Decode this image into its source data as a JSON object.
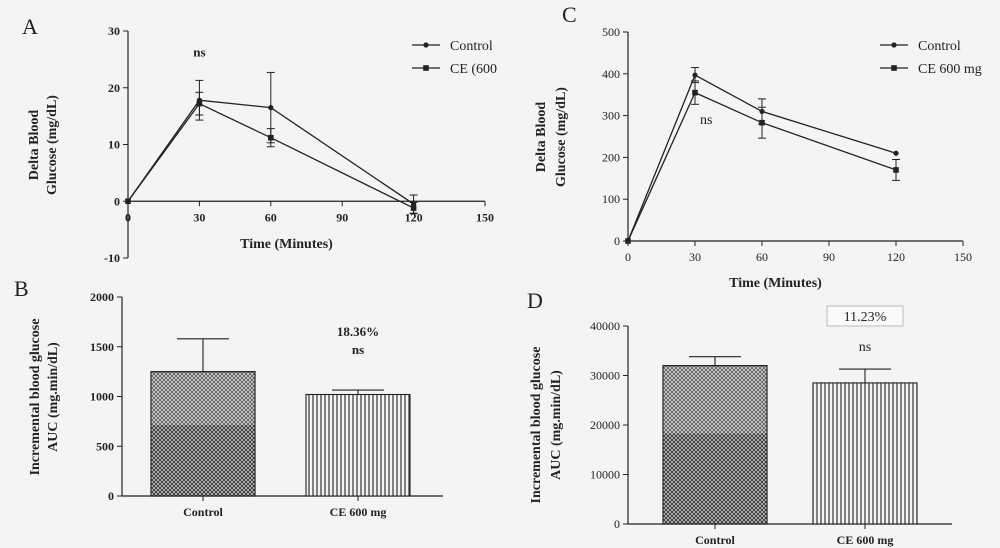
{
  "colors": {
    "ink": "#222222",
    "background": "#f4f4f4"
  },
  "chart_data": [
    {
      "panel": "A",
      "type": "line",
      "xlabel": "Time (Minutes)",
      "ylabel_lines": [
        "Delta Blood",
        "Glucose (mg/dL)"
      ],
      "xlim": [
        0,
        150
      ],
      "ylim": [
        -10,
        30
      ],
      "xticks": [
        0,
        30,
        60,
        90,
        120,
        150
      ],
      "yticks": [
        -10,
        0,
        10,
        20,
        30
      ],
      "x": [
        0,
        30,
        60,
        120
      ],
      "series": [
        {
          "name": "Control",
          "values": [
            0,
            17.8,
            16.5,
            -0.5
          ],
          "errors": [
            0,
            3.5,
            6.2,
            1.6
          ]
        },
        {
          "name": "CE (600",
          "values": [
            0,
            17.2,
            11.2,
            -1.2
          ],
          "errors": [
            0,
            2.0,
            1.6,
            1.0
          ]
        }
      ],
      "annotations": [
        {
          "text": "ns",
          "x": 30,
          "y": 25.5
        }
      ],
      "legend_position": "top-right"
    },
    {
      "panel": "B",
      "type": "bar",
      "ylabel_lines": [
        "Incremental blood glucose",
        "AUC (mg.min/dL)"
      ],
      "categories": [
        "Control",
        "CE 600 mg"
      ],
      "values": [
        1250,
        1020
      ],
      "errors": [
        330,
        45
      ],
      "ylim": [
        0,
        2000
      ],
      "yticks": [
        0,
        500,
        1000,
        1500,
        2000
      ],
      "annotations": [
        {
          "text": "18.36%"
        },
        {
          "text": "ns"
        }
      ]
    },
    {
      "panel": "C",
      "type": "line",
      "xlabel": "Time (Minutes)",
      "ylabel_lines": [
        "Delta Blood",
        "Glucose (mg/dL)"
      ],
      "xlim": [
        0,
        150
      ],
      "ylim": [
        0,
        500
      ],
      "xticks": [
        0,
        30,
        60,
        90,
        120,
        150
      ],
      "yticks": [
        0,
        100,
        200,
        300,
        400,
        500
      ],
      "x": [
        0,
        30,
        60,
        120
      ],
      "series": [
        {
          "name": "Control",
          "values": [
            0,
            397,
            310,
            210
          ],
          "errors": [
            0,
            18,
            30,
            0
          ]
        },
        {
          "name": "CE 600 mg",
          "values": [
            0,
            355,
            283,
            170
          ],
          "errors": [
            0,
            28,
            37,
            25
          ]
        }
      ],
      "annotations": [
        {
          "text": "ns",
          "x": 35,
          "y": 280
        }
      ],
      "legend_position": "top-right"
    },
    {
      "panel": "D",
      "type": "bar",
      "ylabel_lines": [
        "Incremental blood glucose",
        "AUC (mg.min/dL)"
      ],
      "categories": [
        "Control",
        "CE 600 mg"
      ],
      "values": [
        32000,
        28500
      ],
      "errors": [
        1800,
        2800
      ],
      "ylim": [
        0,
        40000
      ],
      "yticks": [
        0,
        10000,
        20000,
        30000,
        40000
      ],
      "annotations": [
        {
          "text": "11.23%"
        },
        {
          "text": "ns"
        }
      ]
    }
  ]
}
